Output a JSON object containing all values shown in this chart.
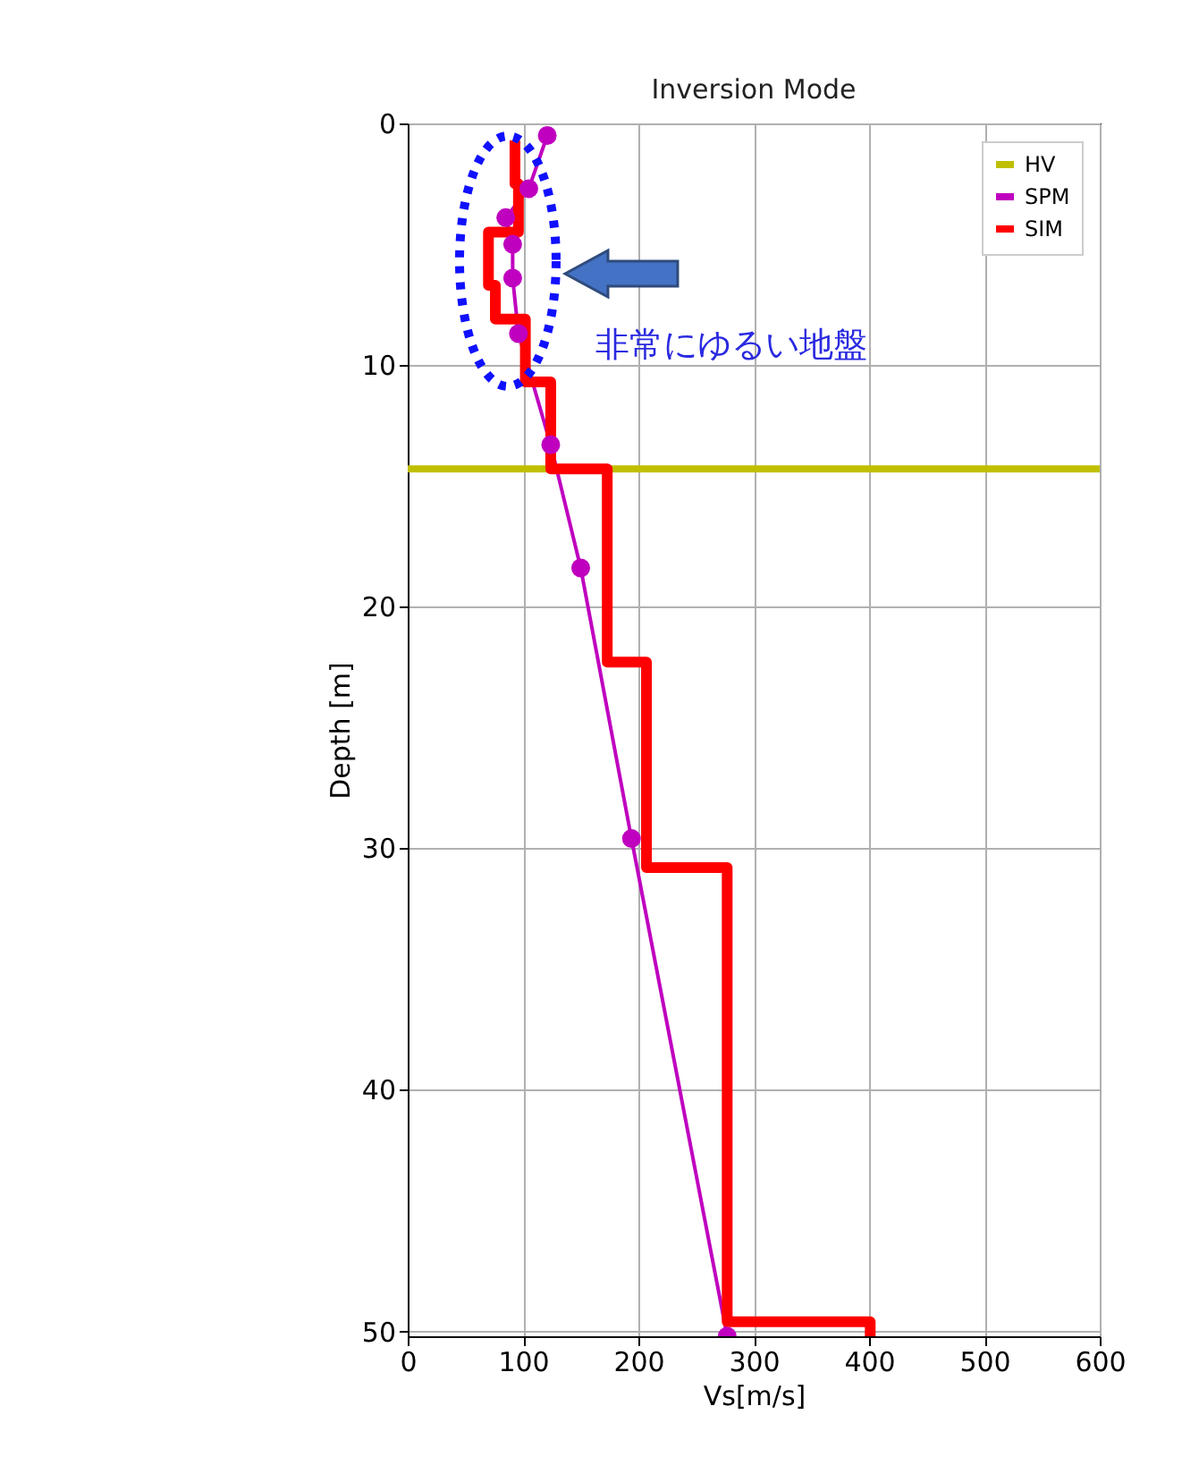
{
  "chart_data": {
    "type": "line",
    "title": "Inversion Mode",
    "xlabel": "Vs[m/s]",
    "ylabel": "Depth [m]",
    "xlim": [
      0,
      600
    ],
    "xticks": [
      0,
      100,
      200,
      300,
      400,
      500,
      600
    ],
    "ylim": [
      50.2,
      0
    ],
    "yticks": [
      0,
      10,
      20,
      30,
      40,
      50
    ],
    "grid": true,
    "legend": "top right",
    "series": [
      {
        "name": "HV",
        "color": "#bfbf00",
        "marker": "none",
        "x": [
          0,
          600
        ],
        "values": [
          14.3,
          14.3
        ]
      },
      {
        "name": "SPM",
        "color": "#bf00bf",
        "marker": "circle",
        "x": [
          121,
          105,
          85,
          91,
          91,
          96,
          124,
          150,
          194,
          277
        ],
        "values": [
          0.5,
          2.7,
          3.9,
          5.0,
          6.4,
          8.7,
          13.3,
          18.4,
          29.6,
          50.2
        ]
      },
      {
        "name": "SIM",
        "color": "#ff0000",
        "marker": "none",
        "x": [
          93,
          93,
          96,
          96,
          70,
          70,
          76,
          76,
          102,
          102,
          124,
          124,
          173,
          173,
          207,
          207,
          277,
          277,
          401,
          401
        ],
        "values": [
          0.7,
          2.5,
          2.5,
          4.5,
          4.5,
          6.7,
          6.7,
          8.1,
          8.1,
          10.7,
          10.7,
          14.3,
          14.3,
          22.3,
          22.3,
          30.8,
          30.8,
          49.6,
          49.6,
          50.2
        ]
      }
    ],
    "annotations": [
      "非常にゆるい地盤"
    ]
  }
}
